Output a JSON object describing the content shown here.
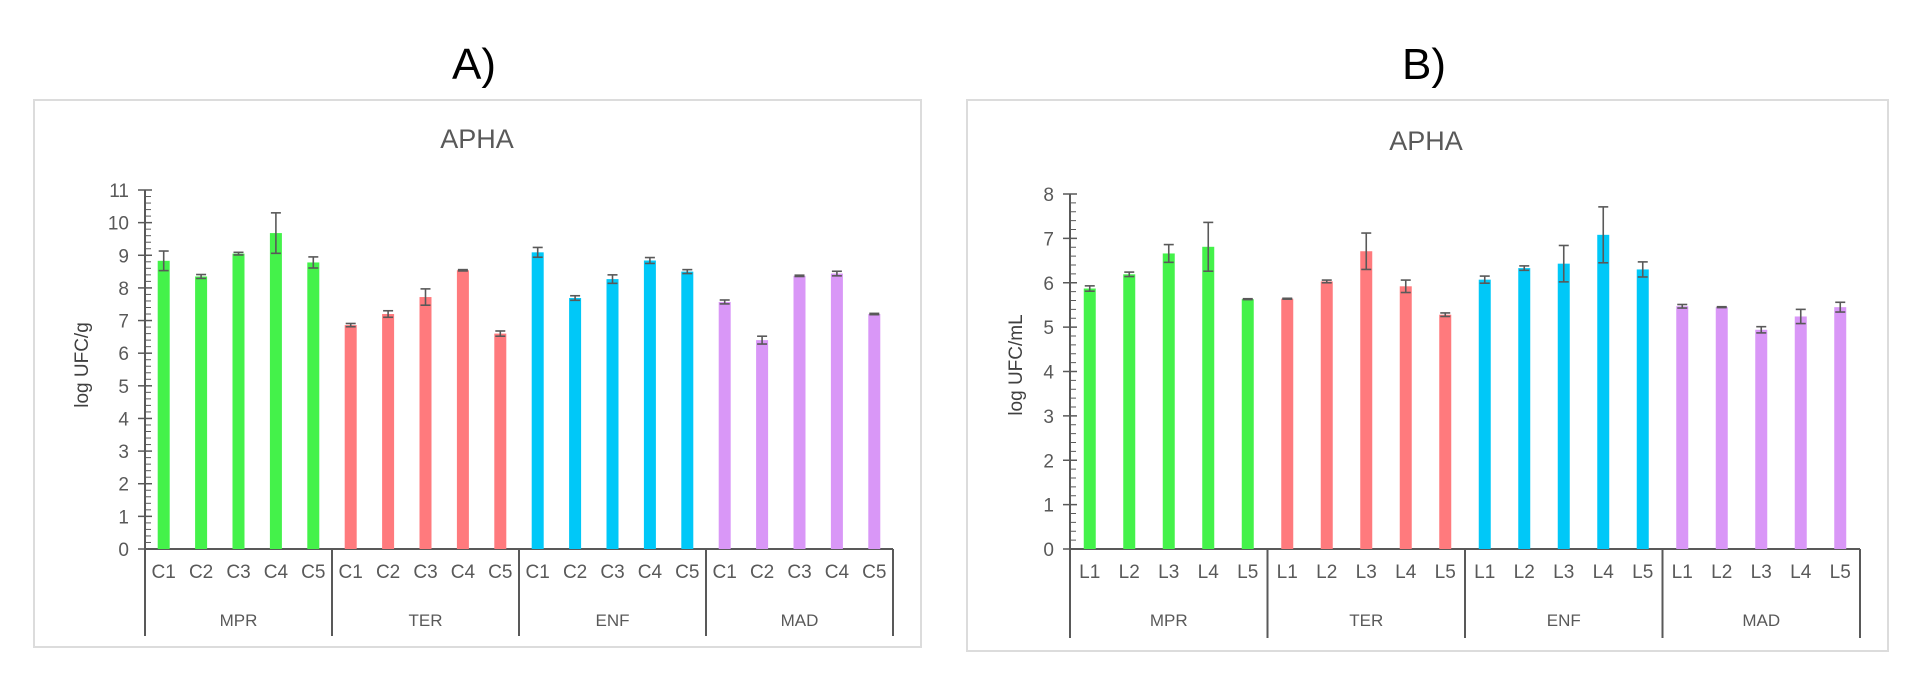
{
  "panels": {
    "a_label": "A)",
    "b_label": "B)"
  },
  "colors": {
    "MPR": "#44f24a",
    "TER": "#ff7a7d",
    "ENF": "#00c8f8",
    "MAD": "#d997f7",
    "axis": "#595959",
    "errorbar": "#595959"
  },
  "chart_data": [
    {
      "type": "bar",
      "title": "APHA",
      "xlabel": "",
      "ylabel": "log UFC/g",
      "ylim": [
        0,
        11
      ],
      "yticks": [
        0,
        1,
        2,
        3,
        4,
        5,
        6,
        7,
        8,
        9,
        10,
        11
      ],
      "grid": false,
      "legend": "none",
      "groups": [
        "MPR",
        "TER",
        "ENF",
        "MAD"
      ],
      "categories": [
        "C1",
        "C2",
        "C3",
        "C4",
        "C5"
      ],
      "series": [
        {
          "name": "MPR",
          "values": [
            8.83,
            8.35,
            9.05,
            9.68,
            8.78
          ],
          "errors": [
            0.3,
            0.06,
            0.04,
            0.62,
            0.17
          ]
        },
        {
          "name": "TER",
          "values": [
            6.86,
            7.2,
            7.72,
            8.54,
            6.6
          ],
          "errors": [
            0.05,
            0.1,
            0.25,
            0.02,
            0.08
          ]
        },
        {
          "name": "ENF",
          "values": [
            9.09,
            7.69,
            8.27,
            8.84,
            8.5
          ],
          "errors": [
            0.15,
            0.07,
            0.13,
            0.09,
            0.06
          ]
        },
        {
          "name": "MAD",
          "values": [
            7.57,
            6.4,
            8.37,
            8.44,
            7.2
          ],
          "errors": [
            0.06,
            0.12,
            0.02,
            0.07,
            0.02
          ]
        }
      ]
    },
    {
      "type": "bar",
      "title": "APHA",
      "xlabel": "",
      "ylabel": "log UFC/mL",
      "ylim": [
        0,
        8
      ],
      "yticks": [
        0,
        1,
        2,
        3,
        4,
        5,
        6,
        7,
        8
      ],
      "grid": false,
      "legend": "none",
      "groups": [
        "MPR",
        "TER",
        "ENF",
        "MAD"
      ],
      "categories": [
        "L1",
        "L2",
        "L3",
        "L4",
        "L5"
      ],
      "series": [
        {
          "name": "MPR",
          "values": [
            5.87,
            6.19,
            6.66,
            6.81,
            5.63
          ],
          "errors": [
            0.06,
            0.05,
            0.2,
            0.55,
            0.01
          ]
        },
        {
          "name": "TER",
          "values": [
            5.64,
            6.03,
            6.71,
            5.92,
            5.28
          ],
          "errors": [
            0.01,
            0.03,
            0.41,
            0.14,
            0.04
          ]
        },
        {
          "name": "ENF",
          "values": [
            6.07,
            6.33,
            6.43,
            7.08,
            6.3
          ],
          "errors": [
            0.08,
            0.05,
            0.41,
            0.63,
            0.17
          ]
        },
        {
          "name": "MAD",
          "values": [
            5.47,
            5.45,
            4.94,
            5.24,
            5.45
          ],
          "errors": [
            0.04,
            0.01,
            0.07,
            0.16,
            0.11
          ]
        }
      ]
    }
  ]
}
